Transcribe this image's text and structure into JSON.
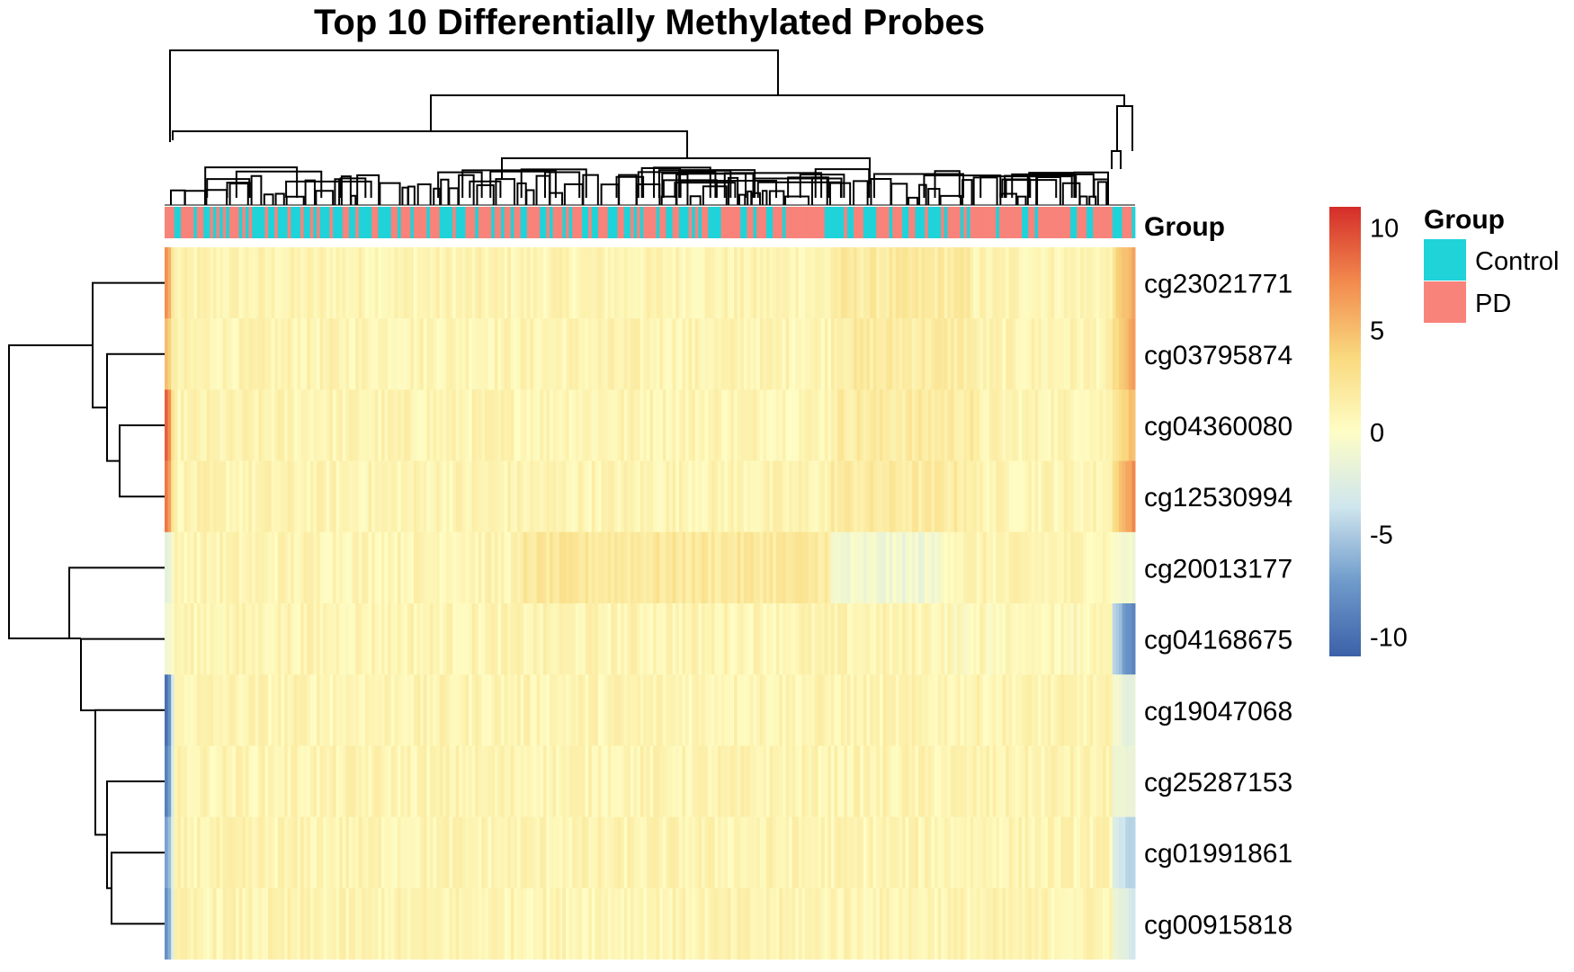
{
  "chart_data": {
    "type": "heatmap",
    "title": "Top 10 Differentially Methylated Probes",
    "rows": [
      "cg23021771",
      "cg03795874",
      "cg04360080",
      "cg12530994",
      "cg20013177",
      "cg04168675",
      "cg19047068",
      "cg25287153",
      "cg01991861",
      "cg00915818"
    ],
    "n_columns": 300,
    "column_annotation": {
      "name": "Group",
      "levels": [
        {
          "label": "Control",
          "color": "#1FD3D9"
        },
        {
          "label": "PD",
          "color": "#F8837A"
        }
      ]
    },
    "colorbar": {
      "range": [
        -11,
        11
      ],
      "ticks": [
        10,
        5,
        0,
        -5,
        -10
      ],
      "colors": [
        "#3C61A8",
        "#6F9BCB",
        "#CFE6EE",
        "#FEFDC5",
        "#F9D97E",
        "#F28A4E",
        "#D42D29"
      ]
    },
    "value_ranges_by_row": [
      {
        "row": "cg23021771",
        "extreme_left": 7,
        "body": "about 0 to 2",
        "right_cluster": 6
      },
      {
        "row": "cg03795874",
        "extreme_left": 5,
        "body": "about -1 to 3",
        "right_cluster": 6
      },
      {
        "row": "cg04360080",
        "extreme_left": 9,
        "body": "about 0 to 2",
        "right_cluster": 5
      },
      {
        "row": "cg12530994",
        "extreme_left": 8,
        "body": "about 0 to 3",
        "right_cluster": 7
      },
      {
        "row": "cg20013177",
        "extreme_left": -2,
        "body": "about -2 to 2",
        "right_cluster": -1
      },
      {
        "row": "cg04168675",
        "extreme_left": -1,
        "body": "about -1 to 2",
        "right_cluster": -9
      },
      {
        "row": "cg19047068",
        "extreme_left": -10,
        "body": "about 0 to 2",
        "right_cluster": -2
      },
      {
        "row": "cg25287153",
        "extreme_left": -9,
        "body": "about -1 to 2",
        "right_cluster": -2
      },
      {
        "row": "cg01991861",
        "extreme_left": -7,
        "body": "about 0 to 2",
        "right_cluster": -5
      },
      {
        "row": "cg00915818",
        "extreme_left": -8,
        "body": "about 0 to 2",
        "right_cluster": -3
      }
    ],
    "row_dendrogram": true,
    "column_dendrogram": true
  }
}
